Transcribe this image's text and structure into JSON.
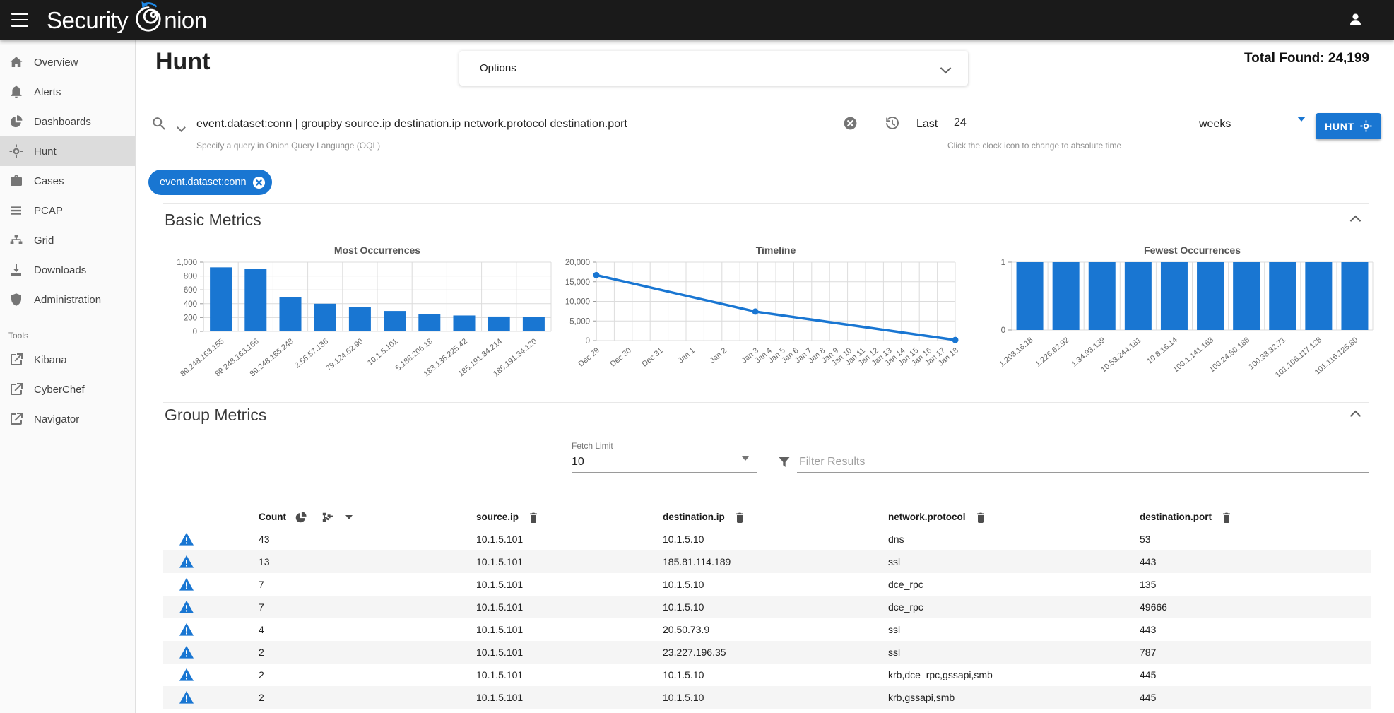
{
  "topbar": {
    "brand_prefix": "Security",
    "brand_suffix": "nion"
  },
  "sidebar": {
    "items": [
      {
        "label": "Overview",
        "icon": "home-icon"
      },
      {
        "label": "Alerts",
        "icon": "bell-icon"
      },
      {
        "label": "Dashboards",
        "icon": "pie-chart-icon"
      },
      {
        "label": "Hunt",
        "icon": "crosshair-icon",
        "active": true
      },
      {
        "label": "Cases",
        "icon": "briefcase-icon"
      },
      {
        "label": "PCAP",
        "icon": "list-icon"
      },
      {
        "label": "Grid",
        "icon": "sitemap-icon"
      },
      {
        "label": "Downloads",
        "icon": "download-icon"
      },
      {
        "label": "Administration",
        "icon": "shield-icon"
      }
    ],
    "tools_header": "Tools",
    "tools": [
      {
        "label": "Kibana",
        "icon": "external-link-icon"
      },
      {
        "label": "CyberChef",
        "icon": "external-link-icon"
      },
      {
        "label": "Navigator",
        "icon": "external-link-icon"
      }
    ]
  },
  "header": {
    "title": "Hunt",
    "options_label": "Options",
    "total_found": "Total Found: 24,199"
  },
  "query_bar": {
    "query": "event.dataset:conn | groupby source.ip destination.ip network.protocol destination.port",
    "hint": "Specify a query in Onion Query Language (OQL)",
    "relative_label": "Last",
    "duration": "24",
    "unit": "weeks",
    "time_hint": "Click the clock icon to change to absolute time",
    "hunt_button": "HUNT"
  },
  "filter_chip": {
    "label": "event.dataset:conn"
  },
  "sections": {
    "basic_metrics": "Basic Metrics",
    "group_metrics": "Group Metrics"
  },
  "chart_data": [
    {
      "type": "bar",
      "title": "Most Occurrences",
      "categories": [
        "89.248.163.155",
        "89.248.163.166",
        "89.248.165.248",
        "2.56.57.136",
        "79.124.62.90",
        "10.1.5.101",
        "5.188.206.18",
        "183.136.225.42",
        "185.191.34.214",
        "185.191.34.120"
      ],
      "values": [
        925,
        905,
        500,
        400,
        350,
        295,
        255,
        230,
        215,
        210
      ],
      "ylim": [
        0,
        1000
      ],
      "yticks": [
        [
          0,
          "0"
        ],
        [
          200,
          "200"
        ],
        [
          400,
          "400"
        ],
        [
          600,
          "600"
        ],
        [
          800,
          "800"
        ],
        [
          1000,
          "1,000"
        ]
      ],
      "grid": true,
      "legend": "none"
    },
    {
      "type": "line",
      "title": "Timeline",
      "x_labels": [
        "Dec 29",
        "Dec 30",
        "Dec 31",
        "Jan 1",
        "Jan 2",
        "Jan 3",
        "Jan 4",
        "Jan 5",
        "Jan 6",
        "Jan 7",
        "Jan 8",
        "Jan 9",
        "Jan 10",
        "Jan 11",
        "Jan 12",
        "Jan 13",
        "Jan 14",
        "Jan 15",
        "Jan 16",
        "Jan 17",
        "Jan 18"
      ],
      "points": [
        [
          "Dec 29",
          16700
        ],
        [
          "Jan 3",
          7400
        ],
        [
          "Jan 18",
          150
        ]
      ],
      "ylim": [
        0,
        20000
      ],
      "yticks": [
        [
          0,
          "0"
        ],
        [
          5000,
          "5,000"
        ],
        [
          10000,
          "10,000"
        ],
        [
          15000,
          "15,000"
        ],
        [
          20000,
          "20,000"
        ]
      ],
      "grid": true,
      "legend": "none"
    },
    {
      "type": "bar",
      "title": "Fewest Occurrences",
      "categories": [
        "1.203.16.18",
        "1.226.62.92",
        "1.34.93.139",
        "10.53.244.181",
        "10.8.16.14",
        "100.1.141.163",
        "100.24.50.186",
        "100.33.32.71",
        "101.108.117.128",
        "101.116.125.80"
      ],
      "values": [
        1,
        1,
        1,
        1,
        1,
        1,
        1,
        1,
        1,
        1
      ],
      "ylim": [
        0,
        1
      ],
      "yticks": [
        [
          0,
          "0"
        ],
        [
          1,
          "1"
        ]
      ],
      "grid": true,
      "legend": "none"
    }
  ],
  "group_metrics": {
    "fetch_limit_label": "Fetch Limit",
    "fetch_limit": "10",
    "filter_placeholder": "Filter Results"
  },
  "table": {
    "columns": [
      {
        "label": "Count"
      },
      {
        "label": "source.ip"
      },
      {
        "label": "destination.ip"
      },
      {
        "label": "network.protocol"
      },
      {
        "label": "destination.port"
      }
    ],
    "rows": [
      [
        "43",
        "10.1.5.101",
        "10.1.5.10",
        "dns",
        "53"
      ],
      [
        "13",
        "10.1.5.101",
        "185.81.114.189",
        "ssl",
        "443"
      ],
      [
        "7",
        "10.1.5.101",
        "10.1.5.10",
        "dce_rpc",
        "135"
      ],
      [
        "7",
        "10.1.5.101",
        "10.1.5.10",
        "dce_rpc",
        "49666"
      ],
      [
        "4",
        "10.1.5.101",
        "20.50.73.9",
        "ssl",
        "443"
      ],
      [
        "2",
        "10.1.5.101",
        "23.227.196.35",
        "ssl",
        "787"
      ],
      [
        "2",
        "10.1.5.101",
        "10.1.5.10",
        "krb,dce_rpc,gssapi,smb",
        "445"
      ],
      [
        "2",
        "10.1.5.101",
        "10.1.5.10",
        "krb,gssapi,smb",
        "445"
      ]
    ]
  },
  "colors": {
    "accent": "#1976d2",
    "topbar": "#1a1a1a",
    "grid_line": "#dcdcdc"
  }
}
